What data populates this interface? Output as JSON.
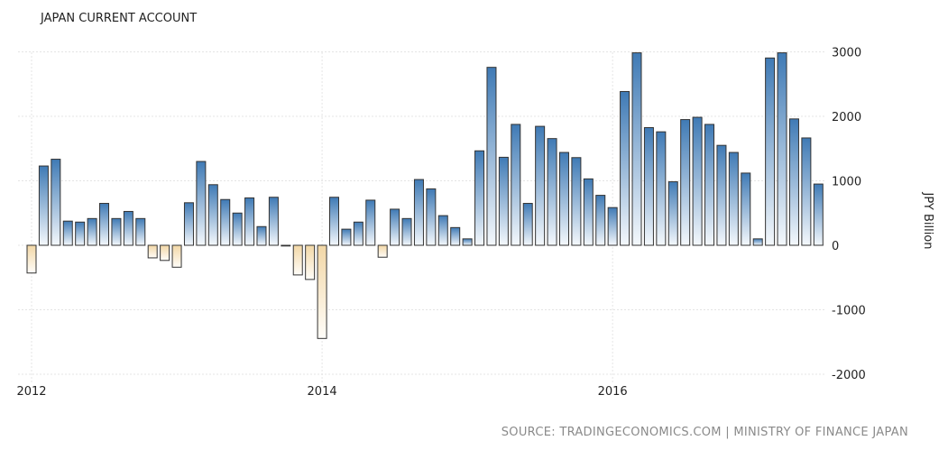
{
  "chart_data": {
    "type": "bar",
    "title": "JAPAN CURRENT ACCOUNT",
    "ylabel": "JPY Billion",
    "xlabel": "",
    "source": "SOURCE: TRADINGECONOMICS.COM | MINISTRY OF FINANCE JAPAN",
    "ylim": [
      -2000,
      3000
    ],
    "yticks": [
      "3000",
      "2000",
      "1000",
      "0",
      "-1000",
      "-2000"
    ],
    "ytick_values": [
      3000,
      2000,
      1000,
      0,
      -1000,
      -2000
    ],
    "xticks": [
      "2012",
      "2014",
      "2016"
    ],
    "xtick_month_index": [
      0,
      24,
      48
    ],
    "start": "2012-01",
    "frequency": "monthly",
    "grid": true,
    "colors": {
      "positive": "#3f7ab5",
      "negative": "#f2d7a6",
      "outline": "#333333"
    },
    "values": [
      -430,
      1230,
      1335,
      375,
      360,
      415,
      650,
      415,
      525,
      415,
      -195,
      -235,
      -340,
      660,
      1300,
      940,
      710,
      500,
      735,
      290,
      745,
      -10,
      -460,
      -530,
      -1445,
      745,
      250,
      360,
      700,
      -185,
      560,
      415,
      1020,
      875,
      460,
      275,
      100,
      1465,
      2760,
      1365,
      1875,
      650,
      1845,
      1655,
      1440,
      1360,
      1030,
      775,
      585,
      2385,
      2985,
      1825,
      1760,
      985,
      1950,
      1985,
      1875,
      1550,
      1440,
      1120,
      100,
      2905,
      2985,
      1960,
      1665,
      950
    ]
  }
}
